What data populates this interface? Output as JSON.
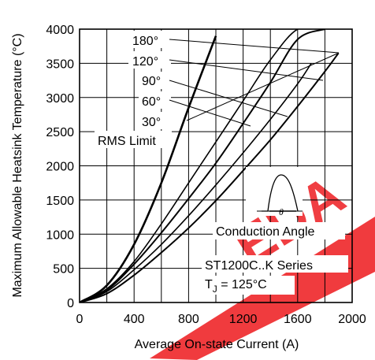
{
  "chart_data": {
    "type": "line",
    "title": "",
    "xlabel": "Average On-state Current (A)",
    "ylabel": "Maximum Allowable Heatsink Temperature (°C)",
    "xlim": [
      0,
      2000
    ],
    "ylim": [
      0,
      4000
    ],
    "x_ticks": [
      "0",
      "400",
      "800",
      "1200",
      "1600",
      "2000"
    ],
    "y_ticks": [
      "0",
      "500",
      "1000",
      "1500",
      "2000",
      "2500",
      "3000",
      "3500",
      "4000"
    ],
    "grid": true,
    "series": [
      {
        "name": "180°",
        "x": [
          0,
          200,
          400,
          600,
          800,
          1000
        ],
        "y": [
          0,
          250,
          850,
          1750,
          2850,
          3900
        ]
      },
      {
        "name": "120°",
        "x": [
          0,
          200,
          400,
          600,
          800,
          1000,
          1200,
          1400,
          1600,
          1800
        ],
        "y": [
          0,
          200,
          600,
          1150,
          1750,
          2350,
          2950,
          3550,
          4000,
          4000
        ]
      },
      {
        "name": "90°",
        "x": [
          0,
          200,
          400,
          600,
          800,
          1000,
          1200,
          1400,
          1600,
          1800
        ],
        "y": [
          0,
          180,
          560,
          1020,
          1520,
          2040,
          2620,
          3220,
          3850,
          4000
        ]
      },
      {
        "name": "60°",
        "x": [
          0,
          200,
          400,
          600,
          800,
          1000,
          1200,
          1400,
          1600,
          1700
        ],
        "y": [
          0,
          160,
          480,
          850,
          1270,
          1720,
          2190,
          2680,
          3200,
          3500
        ]
      },
      {
        "name": "30°",
        "x": [
          0,
          200,
          400,
          600,
          800,
          1000,
          1200,
          1400,
          1600,
          1800,
          1900
        ],
        "y": [
          0,
          130,
          400,
          730,
          1090,
          1490,
          1930,
          2380,
          2870,
          3380,
          3650
        ]
      }
    ],
    "labels": {
      "deg180": "180°",
      "deg120": "120°",
      "deg90": "90°",
      "deg60": "60°",
      "deg30": "30°",
      "rms": "RMS Limit",
      "conduction": "Conduction Angle",
      "series_name": "ST1200C..K Series",
      "tj_prefix": "T",
      "tj_sub": "J",
      "tj_value": " = 125°C"
    },
    "watermark_text": "EDA"
  }
}
